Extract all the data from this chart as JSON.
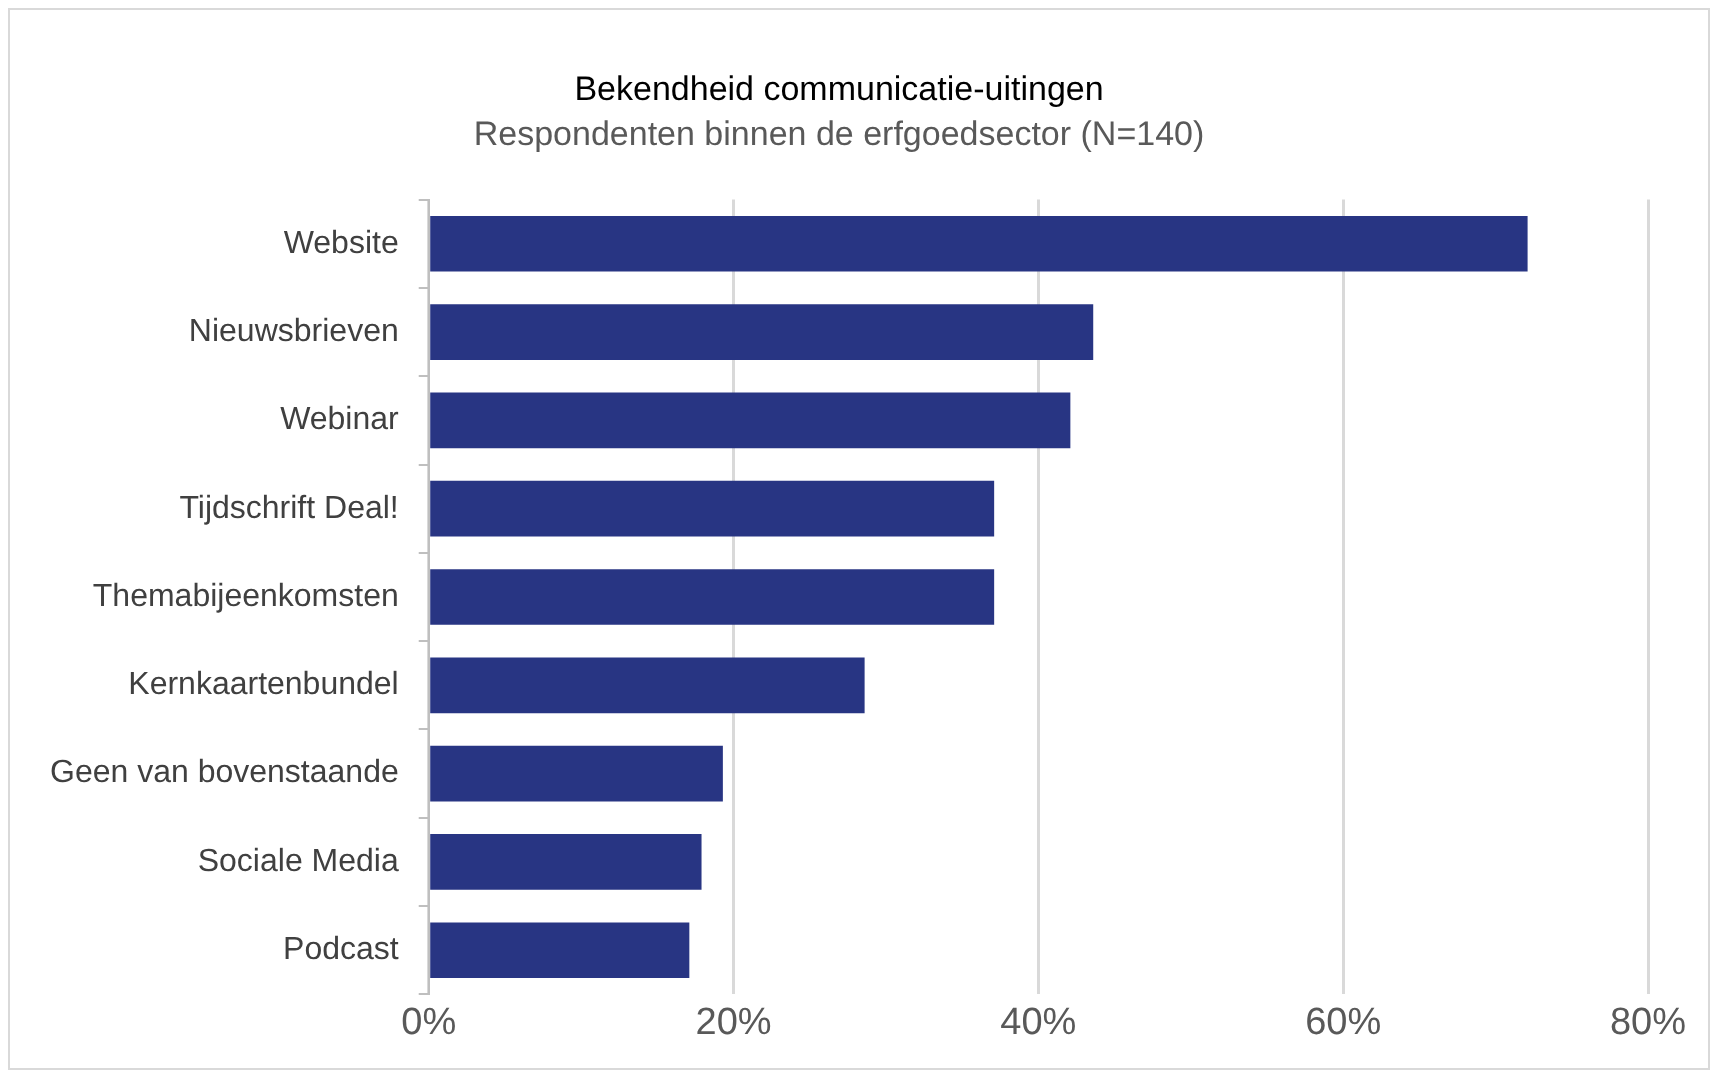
{
  "chart_data": {
    "type": "bar",
    "orientation": "horizontal",
    "title": "Bekendheid communicatie-uitingen",
    "subtitle": "Respondenten binnen de erfgoedsector (N=140)",
    "categories": [
      "Website",
      "Nieuwsbrieven",
      "Webinar",
      "Tijdschrift Deal!",
      "Themabijeenkomsten",
      "Kernkaartenbundel",
      "Geen van bovenstaande",
      "Sociale Media",
      "Podcast"
    ],
    "values": [
      72.1,
      43.6,
      42.1,
      37.1,
      37.1,
      28.6,
      19.3,
      17.9,
      17.1
    ],
    "color": "#283583",
    "xlim": [
      0,
      80
    ],
    "xticks": [
      {
        "value": 0,
        "label": "0%"
      },
      {
        "value": 20,
        "label": "20%"
      },
      {
        "value": 40,
        "label": "40%"
      },
      {
        "value": 60,
        "label": "60%"
      },
      {
        "value": 80,
        "label": "80%"
      }
    ],
    "grid": "x",
    "legend": false
  }
}
